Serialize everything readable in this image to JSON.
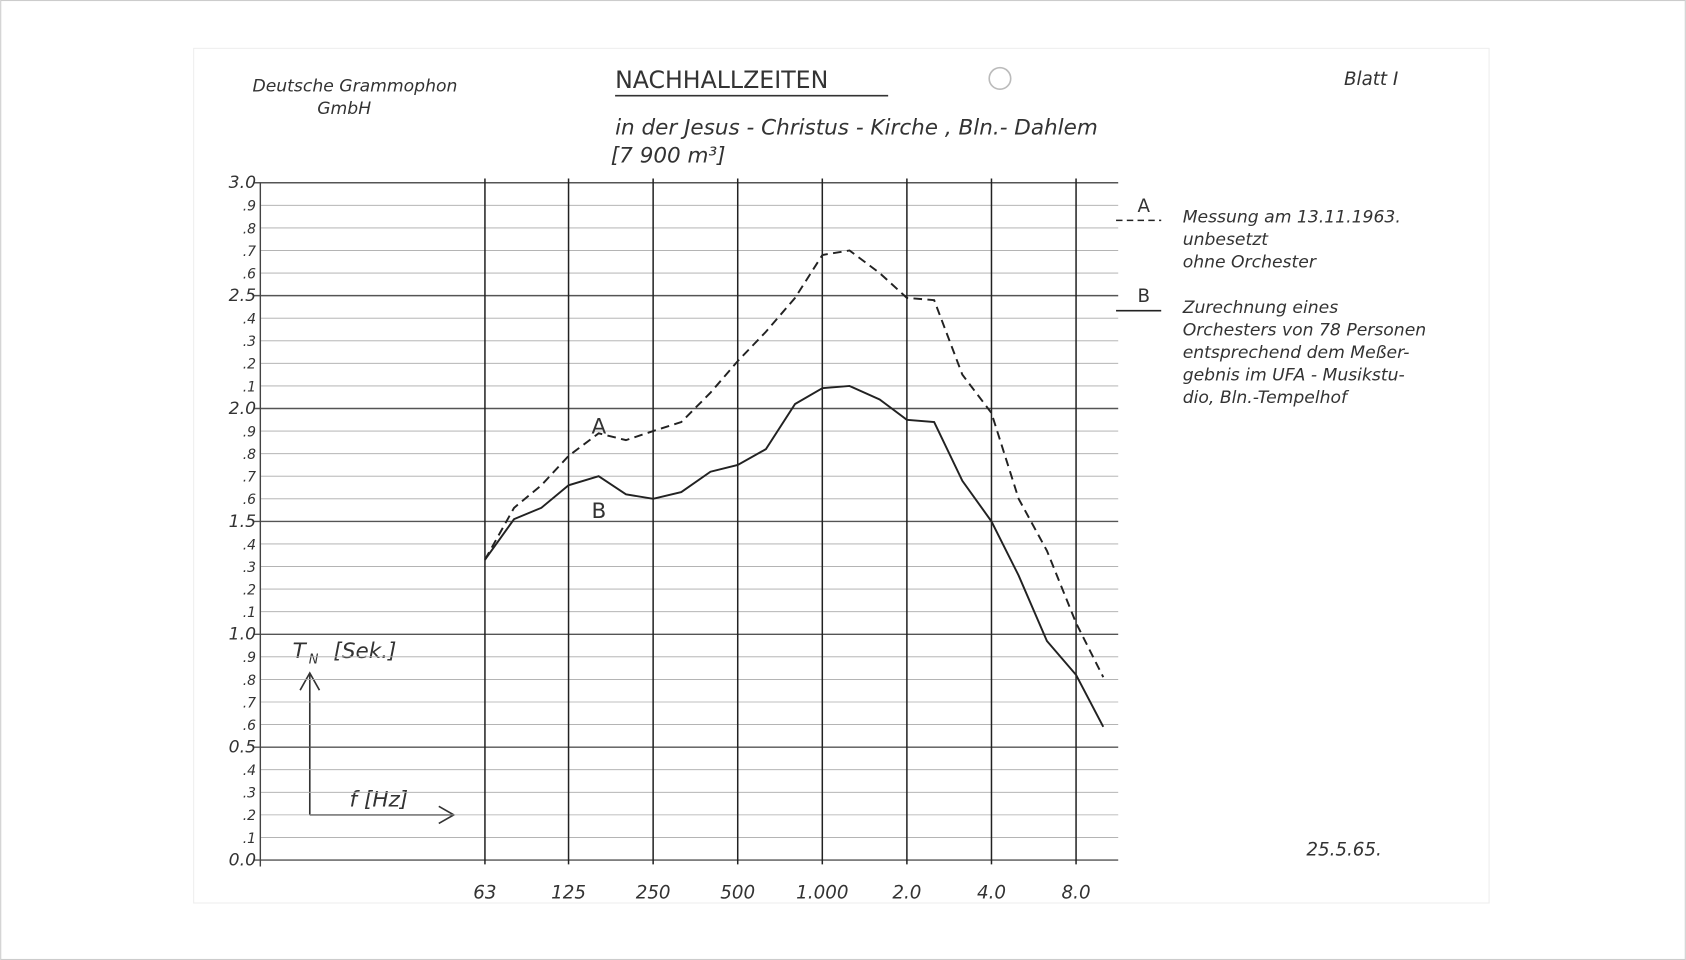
{
  "document": {
    "company": [
      "Deutsche Grammophon",
      "GmbH"
    ],
    "sheet": "Blatt I",
    "date": "25.5.65."
  },
  "chart_data": {
    "type": "line",
    "title": "NACHHALLZEITEN",
    "subtitle": [
      "in der Jesus - Christus - Kirche , Bln.- Dahlem",
      "[7 900 m³]"
    ],
    "y_label": "T",
    "y_label_sub": "N",
    "y_label_unit": "[Sek.]",
    "x_label": "f [Hz]",
    "x_log": true,
    "grid": true,
    "x": [
      63,
      80,
      100,
      125,
      160,
      200,
      250,
      315,
      400,
      500,
      630,
      800,
      1000,
      1250,
      1600,
      2000,
      2500,
      3150,
      4000,
      5000,
      6300,
      8000,
      10000
    ],
    "series": [
      {
        "name": "A",
        "color": "#222222",
        "dashed": true,
        "description": [
          "Messung am 13.11.1963.",
          "unbesetzt",
          "ohne Orchester"
        ],
        "values": [
          1.33,
          1.56,
          1.66,
          1.79,
          1.89,
          1.86,
          1.9,
          1.94,
          2.07,
          2.21,
          2.34,
          2.49,
          2.68,
          2.7,
          2.6,
          2.49,
          2.48,
          2.15,
          1.98,
          1.6,
          1.37,
          1.05,
          0.81
        ]
      },
      {
        "name": "B",
        "color": "#222222",
        "dashed": false,
        "description": [
          "Zurechnung eines",
          "Orchesters von 78 Personen",
          "entsprechend dem Meßer-",
          "gebnis im UFA - Musikstu-",
          "dio, Bln.-Tempelhof"
        ],
        "values": [
          1.33,
          1.51,
          1.56,
          1.66,
          1.7,
          1.62,
          1.6,
          1.63,
          1.72,
          1.75,
          1.82,
          2.02,
          2.09,
          2.1,
          2.04,
          1.95,
          1.94,
          1.68,
          1.5,
          1.26,
          0.97,
          0.82,
          0.59
        ]
      }
    ],
    "xlim": [
      10,
      11300
    ],
    "xticks": [
      63,
      125,
      250,
      500,
      {
        "value": 1000,
        "label": "1.000"
      },
      {
        "value": 2000,
        "label": "2.0"
      },
      {
        "value": 4000,
        "label": "4.0"
      },
      {
        "value": 8000,
        "label": "8.0"
      }
    ],
    "ylim": [
      0,
      3
    ],
    "yticks": [
      {
        "value": 0,
        "label": "0.0"
      },
      {
        "value": 0.1,
        "label": ".1"
      },
      {
        "value": 0.2,
        "label": ".2"
      },
      {
        "value": 0.3,
        "label": ".3"
      },
      {
        "value": 0.4,
        "label": ".4"
      },
      0.5,
      {
        "value": 0.6,
        "label": ".6"
      },
      {
        "value": 0.7,
        "label": ".7"
      },
      {
        "value": 0.8,
        "label": ".8"
      },
      {
        "value": 0.9,
        "label": ".9"
      },
      {
        "value": 1,
        "label": "1.0"
      },
      {
        "value": 1.1,
        "label": ".1"
      },
      {
        "value": 1.2,
        "label": ".2"
      },
      {
        "value": 1.3,
        "label": ".3"
      },
      {
        "value": 1.4,
        "label": ".4"
      },
      1.5,
      {
        "value": 1.6,
        "label": ".6"
      },
      {
        "value": 1.7,
        "label": ".7"
      },
      {
        "value": 1.8,
        "label": ".8"
      },
      {
        "value": 1.9,
        "label": ".9"
      },
      {
        "value": 2,
        "label": "2.0"
      },
      {
        "value": 2.1,
        "label": ".1"
      },
      {
        "value": 2.2,
        "label": ".2"
      },
      {
        "value": 2.3,
        "label": ".3"
      },
      {
        "value": 2.4,
        "label": ".4"
      },
      2.5,
      {
        "value": 2.6,
        "label": ".6"
      },
      {
        "value": 2.7,
        "label": ".7"
      },
      {
        "value": 2.8,
        "label": ".8"
      },
      {
        "value": 2.9,
        "label": ".9"
      },
      {
        "value": 3,
        "label": "3.0"
      }
    ]
  }
}
